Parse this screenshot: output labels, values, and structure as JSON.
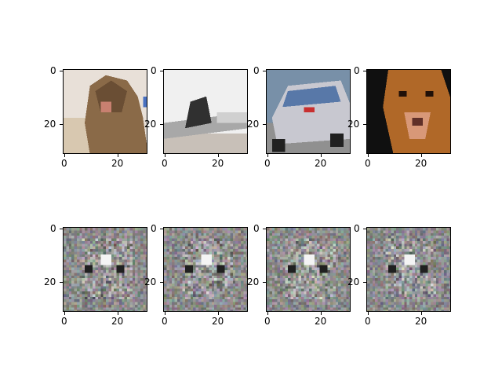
{
  "figure": {
    "rows": [
      {
        "name": "original-images",
        "panels": [
          {
            "subject": "cat",
            "yticks": [
              "0",
              "20"
            ],
            "xticks": [
              "0",
              "20"
            ]
          },
          {
            "subject": "airplane",
            "yticks": [
              "0",
              "20"
            ],
            "xticks": [
              "0",
              "20"
            ]
          },
          {
            "subject": "car",
            "yticks": [
              "0",
              "20"
            ],
            "xticks": [
              "0",
              "20"
            ]
          },
          {
            "subject": "dog",
            "yticks": [
              "0",
              "20"
            ],
            "xticks": [
              "0",
              "20"
            ]
          }
        ]
      },
      {
        "name": "generated-noise-images",
        "panels": [
          {
            "subject": "noise",
            "yticks": [
              "0",
              "20"
            ],
            "xticks": [
              "0",
              "20"
            ]
          },
          {
            "subject": "noise",
            "yticks": [
              "0",
              "20"
            ],
            "xticks": [
              "0",
              "20"
            ]
          },
          {
            "subject": "noise",
            "yticks": [
              "0",
              "20"
            ],
            "xticks": [
              "0",
              "20"
            ]
          },
          {
            "subject": "noise",
            "yticks": [
              "0",
              "20"
            ],
            "xticks": [
              "0",
              "20"
            ]
          }
        ]
      }
    ]
  }
}
